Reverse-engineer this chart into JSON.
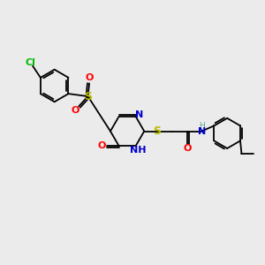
{
  "bg_color": "#ebebeb",
  "bond_color": "#000000",
  "atom_colors": {
    "C": "#000000",
    "N": "#0000cd",
    "O": "#ff0000",
    "S": "#b8b800",
    "Cl": "#00bb00",
    "H": "#5f9ea0"
  },
  "lw": 1.3,
  "fs": 8.0,
  "fs_small": 6.5,
  "xlim": [
    0,
    10
  ],
  "ylim": [
    0,
    10
  ]
}
